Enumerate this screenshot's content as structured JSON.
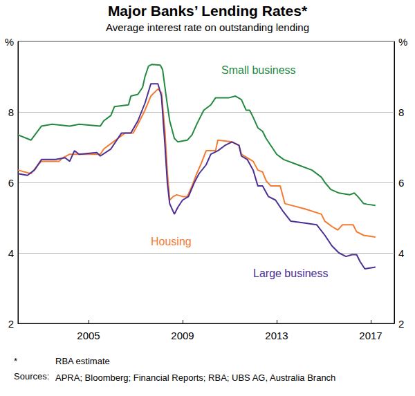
{
  "chart_data": {
    "type": "line",
    "title": "Major Banks’ Lending Rates*",
    "subtitle": "Average interest rate on outstanding lending",
    "footnote": {
      "marker": "*",
      "text": "RBA estimate"
    },
    "sources": {
      "label": "Sources:",
      "text": "APRA; Bloomberg; Financial Reports; RBA; UBS AG, Australia Branch"
    },
    "xlim": [
      2002,
      2018
    ],
    "xticks": [
      2005,
      2009,
      2013,
      2017
    ],
    "ylim": [
      2,
      10
    ],
    "yticks": [
      2,
      4,
      6,
      8,
      {
        "value": 10,
        "label": "%"
      }
    ],
    "grid": true,
    "series": [
      {
        "name": "Small business",
        "color": "#23893f",
        "x": [
          2002.0,
          2002.55,
          2003.0,
          2003.45,
          2004.2,
          2004.6,
          2005.5,
          2005.65,
          2005.95,
          2006.1,
          2006.7,
          2006.8,
          2007.1,
          2007.3,
          2007.4,
          2007.55,
          2007.7,
          2008.05,
          2008.15,
          2008.3,
          2008.45,
          2008.65,
          2008.8,
          2009.2,
          2009.4,
          2009.6,
          2009.75,
          2009.9,
          2010.2,
          2010.4,
          2010.95,
          2011.25,
          2011.5,
          2011.7,
          2011.85,
          2012.0,
          2012.2,
          2012.4,
          2012.55,
          2012.75,
          2013.0,
          2013.3,
          2013.9,
          2014.5,
          2014.9,
          2015.05,
          2015.3,
          2015.65,
          2016.1,
          2016.3,
          2016.45,
          2016.7,
          2016.85,
          2017.2
        ],
        "values": [
          7.35,
          7.2,
          7.6,
          7.65,
          7.6,
          7.65,
          7.6,
          7.75,
          7.9,
          8.15,
          8.2,
          8.45,
          8.5,
          8.7,
          9.0,
          9.3,
          9.35,
          9.33,
          9.2,
          8.45,
          7.75,
          7.25,
          7.15,
          7.2,
          7.35,
          7.65,
          7.85,
          8.05,
          8.2,
          8.4,
          8.4,
          8.45,
          8.35,
          8.05,
          8.05,
          7.85,
          7.55,
          7.45,
          7.25,
          7.05,
          6.8,
          6.65,
          6.5,
          6.35,
          6.15,
          6.0,
          5.8,
          5.7,
          5.65,
          5.7,
          5.6,
          5.4,
          5.38,
          5.35
        ]
      },
      {
        "name": "Housing",
        "color": "#f47a30",
        "x": [
          2002.0,
          2002.55,
          2002.85,
          2003.0,
          2003.75,
          2003.9,
          2004.2,
          2005.5,
          2005.65,
          2005.95,
          2006.25,
          2006.55,
          2006.9,
          2007.1,
          2007.4,
          2007.65,
          2007.95,
          2008.1,
          2008.25,
          2008.35,
          2008.45,
          2008.6,
          2008.75,
          2009.0,
          2009.2,
          2009.4,
          2009.6,
          2009.8,
          2010.0,
          2010.4,
          2010.5,
          2011.1,
          2011.4,
          2011.5,
          2011.75,
          2012.0,
          2012.2,
          2012.4,
          2012.55,
          2012.75,
          2013.15,
          2013.35,
          2014.2,
          2014.9,
          2015.05,
          2015.35,
          2015.6,
          2015.8,
          2016.25,
          2016.4,
          2016.7,
          2017.2
        ],
        "values": [
          6.35,
          6.25,
          6.5,
          6.6,
          6.6,
          6.7,
          6.8,
          6.8,
          6.95,
          7.1,
          7.25,
          7.4,
          7.4,
          7.65,
          8.05,
          8.45,
          8.65,
          8.55,
          7.45,
          6.3,
          5.5,
          5.6,
          5.65,
          5.6,
          5.6,
          5.9,
          6.25,
          6.55,
          6.9,
          6.9,
          7.2,
          7.15,
          7.05,
          6.8,
          6.7,
          6.6,
          6.35,
          6.3,
          6.05,
          5.9,
          5.9,
          5.4,
          5.25,
          5.1,
          4.9,
          4.75,
          4.65,
          4.8,
          4.8,
          4.6,
          4.5,
          4.45
        ]
      },
      {
        "name": "Large business",
        "color": "#4b2f92",
        "x": [
          2002.0,
          2002.4,
          2002.7,
          2003.0,
          2003.6,
          2004.0,
          2004.2,
          2004.4,
          2004.6,
          2005.35,
          2005.5,
          2005.95,
          2006.4,
          2006.8,
          2007.1,
          2007.4,
          2007.65,
          2007.95,
          2008.1,
          2008.25,
          2008.35,
          2008.45,
          2008.65,
          2008.8,
          2009.0,
          2009.25,
          2009.5,
          2009.7,
          2010.0,
          2010.2,
          2010.5,
          2010.8,
          2011.1,
          2011.4,
          2011.5,
          2011.75,
          2012.0,
          2012.2,
          2012.4,
          2012.65,
          2012.95,
          2013.25,
          2013.6,
          2014.2,
          2014.7,
          2015.05,
          2015.35,
          2015.65,
          2015.95,
          2016.2,
          2016.4,
          2016.55,
          2016.75,
          2017.2
        ],
        "values": [
          6.25,
          6.2,
          6.35,
          6.65,
          6.65,
          6.7,
          6.6,
          6.9,
          6.8,
          6.85,
          6.75,
          6.95,
          7.4,
          7.4,
          7.75,
          8.25,
          8.8,
          8.8,
          8.45,
          7.05,
          6.0,
          5.4,
          5.1,
          5.3,
          5.5,
          5.6,
          6.0,
          6.25,
          6.5,
          6.8,
          6.9,
          7.05,
          7.15,
          7.05,
          6.75,
          6.65,
          6.35,
          5.9,
          5.9,
          5.6,
          5.5,
          5.2,
          4.9,
          4.85,
          4.8,
          4.5,
          4.2,
          4.0,
          3.9,
          3.95,
          3.95,
          3.75,
          3.55,
          3.6
        ]
      }
    ]
  }
}
